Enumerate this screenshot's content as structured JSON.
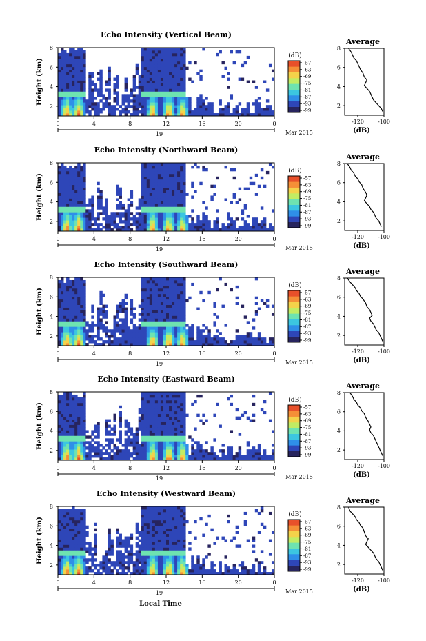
{
  "figure": {
    "xlabel": "Local Time",
    "date_label": "Mar 2015",
    "day_label": "19",
    "colorbar_unit": "(dB)",
    "colorbar_ticks": [
      "-57",
      "-63",
      "-69",
      "-75",
      "-81",
      "-87",
      "-93",
      "-99"
    ],
    "colorbar_colors": [
      "#27245e",
      "#2e46b8",
      "#2f8fe8",
      "#3cc6e0",
      "#6ee3b0",
      "#c2ec63",
      "#f4d24a",
      "#f58f37",
      "#e8502a"
    ]
  },
  "chart_data": [
    {
      "type": "heatmap",
      "title": "Echo Intensity (Vertical Beam)",
      "ylabel": "Height (km)",
      "x_ticks": [
        "0",
        "4",
        "8",
        "12",
        "16",
        "20",
        "0"
      ],
      "y_ticks": [
        "2",
        "4",
        "6",
        "8"
      ],
      "xlim": [
        0,
        24
      ],
      "ylim": [
        1,
        8
      ],
      "units": "dB",
      "color_range": [
        -99,
        -57
      ],
      "bright_layer_km": 3.2,
      "convective_columns_hours": [
        1.0,
        2.3,
        10.5,
        12.3,
        13.8
      ],
      "profile": {
        "title": "Average",
        "xlabel": "(dB)",
        "x_ticks": [
          "-120",
          "-100"
        ],
        "y_ticks": [
          "2",
          "4",
          "6",
          "8"
        ],
        "xlim": [
          -130,
          -100
        ],
        "ylim": [
          1,
          8
        ],
        "x": [
          -127,
          -125,
          -124,
          -123,
          -121,
          -120,
          -119,
          -118,
          -116,
          -115,
          -113,
          -114,
          -115,
          -113,
          -111,
          -110,
          -109,
          -108,
          -106,
          -104,
          -102,
          -101
        ],
        "y": [
          8.0,
          7.6,
          7.3,
          7.0,
          6.7,
          6.4,
          6.1,
          5.8,
          5.4,
          5.0,
          4.7,
          4.4,
          4.1,
          3.8,
          3.5,
          3.2,
          2.9,
          2.6,
          2.3,
          2.0,
          1.7,
          1.4
        ]
      }
    },
    {
      "type": "heatmap",
      "title": "Echo Intensity (Northward Beam)",
      "ylabel": "Height (km)",
      "x_ticks": [
        "0",
        "4",
        "8",
        "12",
        "16",
        "20",
        "0"
      ],
      "y_ticks": [
        "2",
        "4",
        "6",
        "8"
      ],
      "xlim": [
        0,
        24
      ],
      "ylim": [
        1,
        8
      ],
      "units": "dB",
      "color_range": [
        -99,
        -57
      ],
      "bright_layer_km": 3.2,
      "convective_columns_hours": [
        1.0,
        2.3,
        10.5,
        12.3,
        13.8
      ],
      "profile": {
        "title": "Average",
        "xlabel": "(dB)",
        "x_ticks": [
          "-120",
          "-100"
        ],
        "y_ticks": [
          "2",
          "4",
          "6",
          "8"
        ],
        "xlim": [
          -130,
          -100
        ],
        "ylim": [
          1,
          8
        ],
        "x": [
          -128,
          -126,
          -125,
          -123,
          -122,
          -120,
          -119,
          -117,
          -116,
          -114,
          -113,
          -114,
          -115,
          -113,
          -111,
          -110,
          -108,
          -107,
          -106,
          -104,
          -103,
          -102
        ],
        "y": [
          8.0,
          7.6,
          7.3,
          7.0,
          6.7,
          6.4,
          6.1,
          5.8,
          5.4,
          5.0,
          4.7,
          4.4,
          4.1,
          3.8,
          3.5,
          3.2,
          2.9,
          2.6,
          2.3,
          2.0,
          1.7,
          1.4
        ]
      }
    },
    {
      "type": "heatmap",
      "title": "Echo Intensity (Southward Beam)",
      "ylabel": "Height (km)",
      "x_ticks": [
        "0",
        "4",
        "8",
        "12",
        "16",
        "20",
        "0"
      ],
      "y_ticks": [
        "2",
        "4",
        "6",
        "8"
      ],
      "xlim": [
        0,
        24
      ],
      "ylim": [
        1,
        8
      ],
      "units": "dB",
      "color_range": [
        -99,
        -57
      ],
      "bright_layer_km": 3.2,
      "convective_columns_hours": [
        1.0,
        2.3,
        10.5,
        12.3,
        13.8
      ],
      "profile": {
        "title": "Average",
        "xlabel": "(dB)",
        "x_ticks": [
          "-120",
          "-100"
        ],
        "y_ticks": [
          "2",
          "4",
          "6",
          "8"
        ],
        "xlim": [
          -130,
          -100
        ],
        "ylim": [
          1,
          8
        ],
        "x": [
          -128,
          -126,
          -124,
          -122,
          -121,
          -119,
          -118,
          -116,
          -114,
          -113,
          -111,
          -110,
          -109,
          -111,
          -110,
          -108,
          -107,
          -106,
          -104,
          -103,
          -102,
          -101
        ],
        "y": [
          8.0,
          7.6,
          7.3,
          7.0,
          6.7,
          6.4,
          6.1,
          5.8,
          5.4,
          5.0,
          4.7,
          4.4,
          4.1,
          3.8,
          3.5,
          3.2,
          2.9,
          2.6,
          2.3,
          2.0,
          1.7,
          1.4
        ]
      }
    },
    {
      "type": "heatmap",
      "title": "Echo Intensity (Eastward Beam)",
      "ylabel": "Height (km)",
      "x_ticks": [
        "0",
        "4",
        "8",
        "12",
        "16",
        "20",
        "0"
      ],
      "y_ticks": [
        "2",
        "4",
        "6",
        "8"
      ],
      "xlim": [
        0,
        24
      ],
      "ylim": [
        1,
        8
      ],
      "units": "dB",
      "color_range": [
        -99,
        -57
      ],
      "bright_layer_km": 3.2,
      "convective_columns_hours": [
        1.0,
        2.3,
        10.5,
        12.3,
        13.8
      ],
      "profile": {
        "title": "Average",
        "xlabel": "(dB)",
        "x_ticks": [
          "-120",
          "-100"
        ],
        "y_ticks": [
          "2",
          "4",
          "6",
          "8"
        ],
        "xlim": [
          -130,
          -100
        ],
        "ylim": [
          1,
          8
        ],
        "x": [
          -126,
          -124,
          -123,
          -121,
          -120,
          -118,
          -117,
          -115,
          -114,
          -112,
          -111,
          -110,
          -111,
          -110,
          -108,
          -107,
          -106,
          -105,
          -104,
          -103,
          -102,
          -101
        ],
        "y": [
          8.0,
          7.6,
          7.3,
          7.0,
          6.7,
          6.4,
          6.1,
          5.8,
          5.4,
          5.0,
          4.7,
          4.4,
          4.1,
          3.8,
          3.5,
          3.2,
          2.9,
          2.6,
          2.3,
          2.0,
          1.7,
          1.4
        ]
      }
    },
    {
      "type": "heatmap",
      "title": "Echo Intensity (Westward Beam)",
      "ylabel": "Height (km)",
      "x_ticks": [
        "0",
        "4",
        "8",
        "12",
        "16",
        "20",
        "0"
      ],
      "y_ticks": [
        "2",
        "4",
        "6",
        "8"
      ],
      "xlim": [
        0,
        24
      ],
      "ylim": [
        1,
        8
      ],
      "units": "dB",
      "color_range": [
        -99,
        -57
      ],
      "bright_layer_km": 3.2,
      "convective_columns_hours": [
        1.0,
        2.3,
        10.5,
        12.3,
        13.8
      ],
      "profile": {
        "title": "Average",
        "xlabel": "(dB)",
        "x_ticks": [
          "-120",
          "-100"
        ],
        "y_ticks": [
          "2",
          "4",
          "6",
          "8"
        ],
        "xlim": [
          -130,
          -100
        ],
        "ylim": [
          1,
          8
        ],
        "x": [
          -127,
          -126,
          -124,
          -122,
          -121,
          -119,
          -118,
          -116,
          -115,
          -114,
          -112,
          -113,
          -114,
          -112,
          -110,
          -108,
          -107,
          -106,
          -104,
          -103,
          -102,
          -101
        ],
        "y": [
          8.0,
          7.6,
          7.3,
          7.0,
          6.7,
          6.4,
          6.1,
          5.8,
          5.4,
          5.0,
          4.7,
          4.4,
          4.1,
          3.8,
          3.5,
          3.2,
          2.9,
          2.6,
          2.3,
          2.0,
          1.7,
          1.4
        ]
      }
    }
  ]
}
